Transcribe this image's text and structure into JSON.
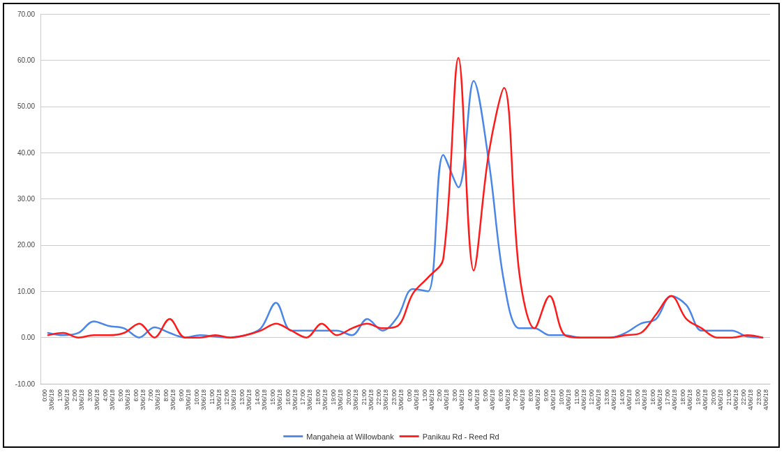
{
  "chart_data": {
    "type": "line",
    "categories": [
      "0:00\n3/06/18",
      "1:00\n3/06/18",
      "2:00\n3/06/18",
      "3:00\n3/06/18",
      "4:00\n3/06/18",
      "5:00\n3/06/18",
      "6:00\n3/06/18",
      "7:00\n3/06/18",
      "8:00\n3/06/18",
      "9:00\n3/06/18",
      "10:00\n3/06/18",
      "11:00\n3/06/18",
      "12:00\n3/06/18",
      "13:00\n3/06/18",
      "14:00\n3/06/18",
      "15:00\n3/06/18",
      "16:00\n3/06/18",
      "17:00\n3/06/18",
      "18:00\n3/06/18",
      "19:00\n3/06/18",
      "20:00\n3/06/18",
      "21:00\n3/06/18",
      "22:00\n3/06/18",
      "23:00\n3/06/18",
      "0:00\n4/06/18",
      "1:00\n4/06/18",
      "2:00\n4/06/18",
      "3:00\n4/06/18",
      "4:00\n4/06/18",
      "5:00\n4/06/18",
      "6:00\n4/06/18",
      "7:00\n4/06/18",
      "8:00\n4/06/18",
      "9:00\n4/06/18",
      "10:00\n4/06/18",
      "11:00\n4/06/18",
      "12:00\n4/06/18",
      "13:00\n4/06/18",
      "14:00\n4/06/18",
      "15:00\n4/06/18",
      "16:00\n4/06/18",
      "17:00\n4/06/18",
      "18:00\n4/06/18",
      "19:00\n4/06/18",
      "20:00\n4/06/18",
      "21:00\n4/06/18",
      "22:00\n4/06/18",
      "23:00\n4/06/18"
    ],
    "series": [
      {
        "name": "Mangaheia at Willowbank",
        "color": "#4a86e8",
        "values": [
          1,
          0.5,
          1,
          3.5,
          2.5,
          2,
          0,
          2.2,
          1,
          0,
          0.5,
          0.2,
          0,
          0.5,
          2,
          7.5,
          1.5,
          1.5,
          1.5,
          1.5,
          0.5,
          4,
          1.5,
          4.5,
          10.5,
          10,
          39.5,
          32.5,
          55.5,
          38,
          12,
          2,
          2,
          0.5,
          0.5,
          0,
          0,
          0,
          1,
          3,
          4,
          9,
          7,
          1.5,
          1.5,
          1.5,
          0.2,
          0
        ]
      },
      {
        "name": "Panikau Rd - Reed Rd",
        "color": "#ff1a1a",
        "values": [
          0.5,
          1,
          0,
          0.5,
          0.5,
          1,
          3,
          0,
          4,
          0,
          0,
          0.5,
          0,
          0.5,
          1.5,
          3,
          1.5,
          0,
          3,
          0.5,
          2,
          3,
          2,
          2.5,
          9.5,
          13,
          17,
          60.5,
          14.5,
          40,
          54,
          14,
          2,
          9,
          0.5,
          0,
          0,
          0,
          0.5,
          1,
          5,
          9,
          4,
          2,
          0,
          0,
          0.5,
          0
        ]
      }
    ],
    "ylim": [
      -10,
      70
    ],
    "yticks": [
      {
        "value": -10,
        "label": "-10.00"
      },
      {
        "value": 0,
        "label": "0.00"
      },
      {
        "value": 10,
        "label": "10.00"
      },
      {
        "value": 20,
        "label": "20.00"
      },
      {
        "value": 30,
        "label": "30.00"
      },
      {
        "value": 40,
        "label": "40.00"
      },
      {
        "value": 50,
        "label": "50.00"
      },
      {
        "value": 60,
        "label": "60.00"
      },
      {
        "value": 70,
        "label": "70.00"
      }
    ],
    "grid": "y",
    "legend": "bottom",
    "marker": "none",
    "line_style": "solid"
  }
}
